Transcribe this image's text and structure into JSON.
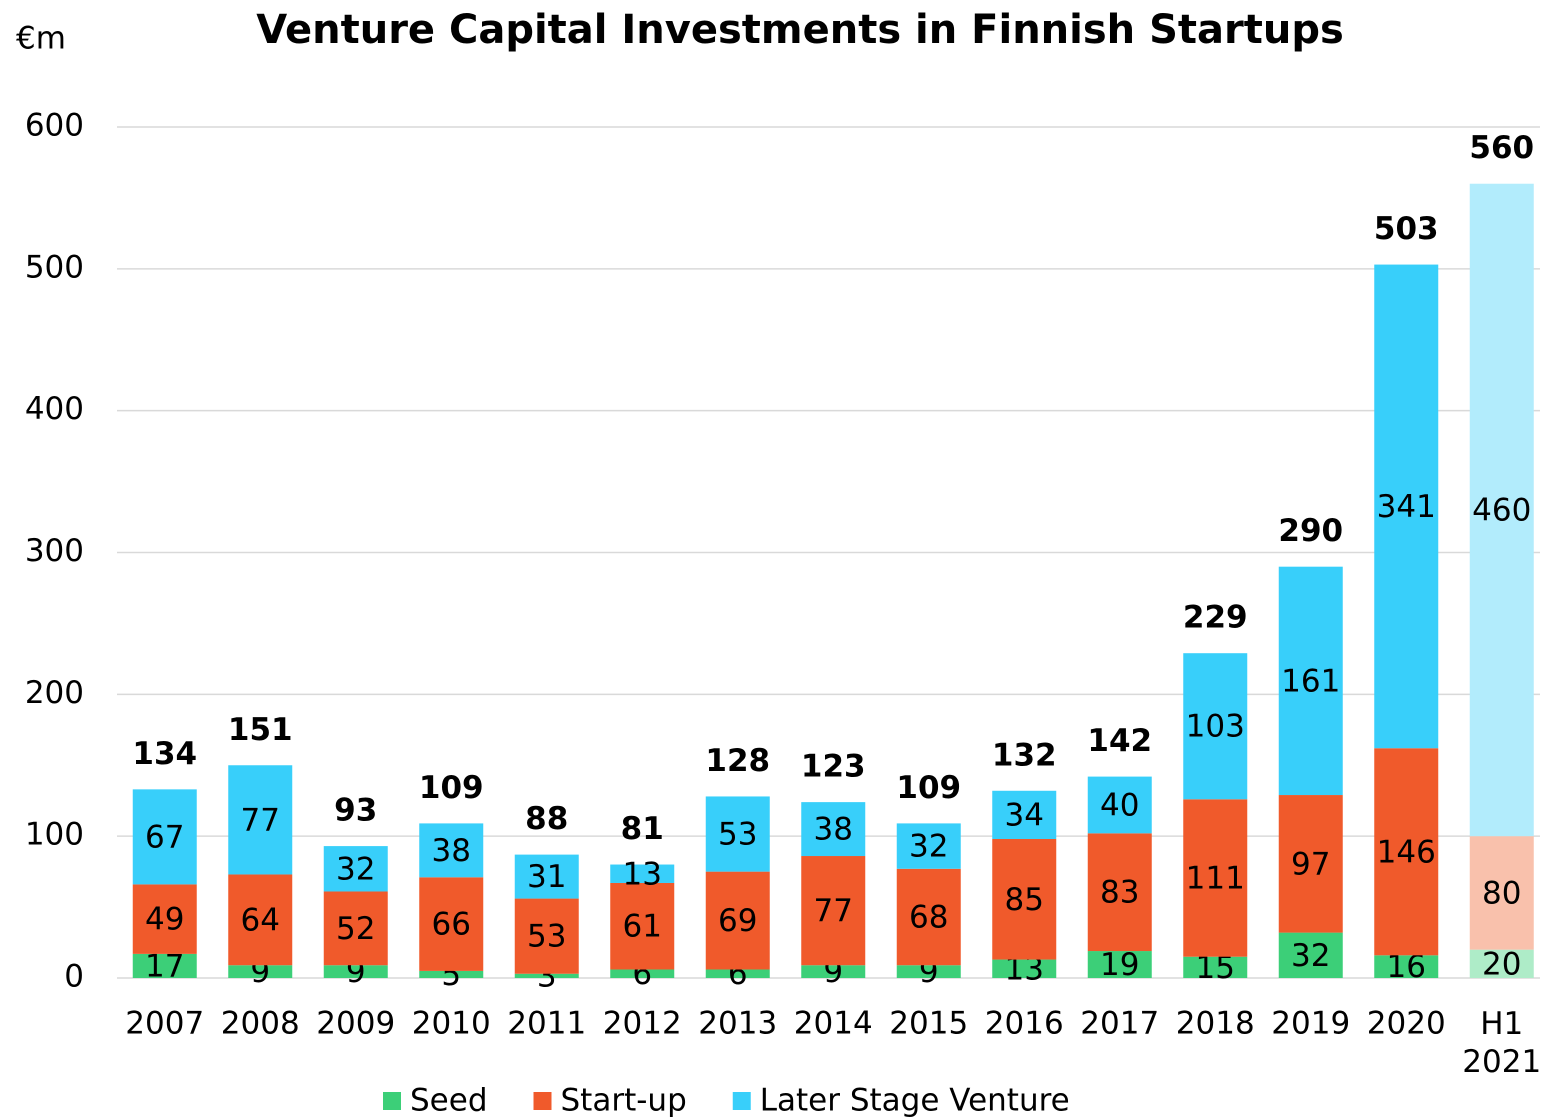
{
  "chart_data": {
    "type": "stacked_bar",
    "title": "Venture Capital Investments in Finnish Startups",
    "y_label": "€m",
    "categories": [
      "2007",
      "2008",
      "2009",
      "2010",
      "2011",
      "2012",
      "2013",
      "2014",
      "2015",
      "2016",
      "2017",
      "2018",
      "2019",
      "2020",
      "H1 2021"
    ],
    "series": [
      {
        "name": "Seed",
        "color": "#3ccf78",
        "faded_color": "#aeecc8",
        "values": [
          17,
          9,
          9,
          5,
          3,
          6,
          6,
          9,
          9,
          13,
          19,
          15,
          32,
          16,
          20
        ]
      },
      {
        "name": "Start-up",
        "color": "#f05a2b",
        "faded_color": "#f9c1ac",
        "values": [
          49,
          64,
          52,
          66,
          53,
          61,
          69,
          77,
          68,
          85,
          83,
          111,
          97,
          146,
          80
        ]
      },
      {
        "name": "Later Stage Venture",
        "color": "#38cffa",
        "faded_color": "#b2ecfc",
        "values": [
          67,
          77,
          32,
          38,
          31,
          13,
          53,
          38,
          32,
          34,
          40,
          103,
          161,
          341,
          460
        ]
      }
    ],
    "totals": [
      134,
      151,
      93,
      109,
      88,
      81,
      128,
      123,
      109,
      132,
      142,
      229,
      290,
      503,
      560
    ],
    "faded_categories": [
      "H1 2021"
    ],
    "ylim": [
      0,
      600
    ],
    "yticks": [
      0,
      100,
      200,
      300,
      400,
      500,
      600
    ],
    "grid": true
  }
}
